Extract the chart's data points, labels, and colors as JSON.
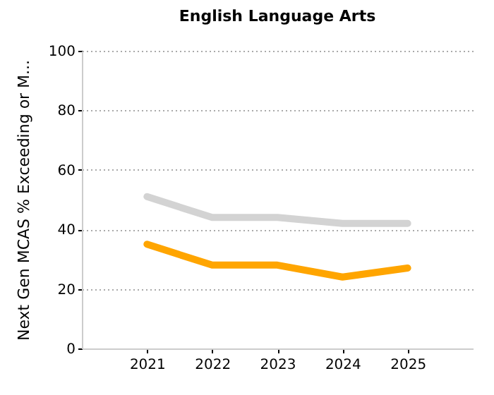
{
  "chart_data": {
    "type": "line",
    "title": "English Language Arts",
    "ylabel": "Next Gen MCAS % Exceeding or M...",
    "categories": [
      "2021",
      "2022",
      "2023",
      "2024",
      "2025"
    ],
    "series": [
      {
        "color": "#d3d3d3",
        "values": [
          51,
          44,
          44,
          42,
          42
        ]
      },
      {
        "color": "#ffa500",
        "values": [
          35,
          28,
          28,
          24,
          27
        ]
      }
    ],
    "ylim": [
      0,
      100
    ],
    "yticks": [
      0,
      20,
      40,
      60,
      80,
      100
    ],
    "grid": "y",
    "legend": false,
    "marker": "none",
    "line_style": "solid"
  }
}
